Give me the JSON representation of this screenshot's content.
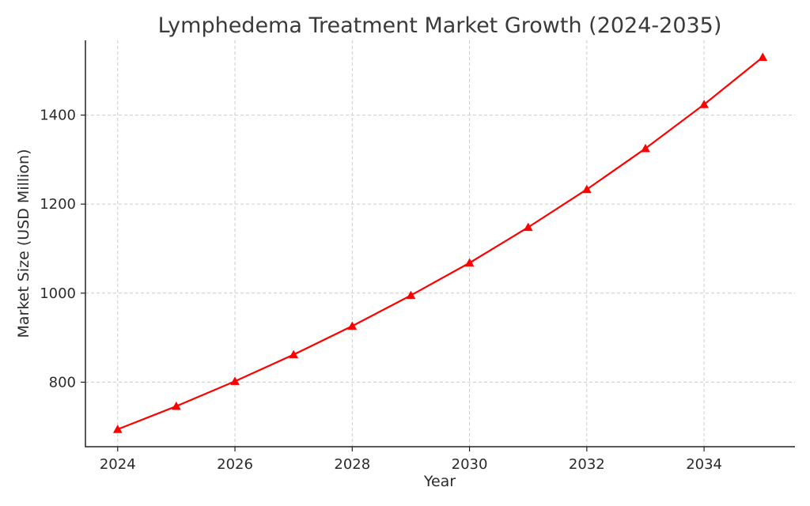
{
  "chart_data": {
    "type": "line",
    "title": "Lymphedema Treatment Market Growth (2024-2035)",
    "xlabel": "Year",
    "ylabel": "Market Size (USD Million)",
    "x": [
      2024,
      2025,
      2026,
      2027,
      2028,
      2029,
      2030,
      2031,
      2032,
      2033,
      2034,
      2035
    ],
    "series": [
      {
        "values": [
          694,
          746,
          802,
          862,
          926,
          995,
          1068,
          1148,
          1233,
          1325,
          1424,
          1530
        ],
        "color": "#ff0000",
        "marker": "triangle-up"
      }
    ],
    "xlim": [
      2023.45,
      2035.55
    ],
    "ylim": [
      655,
      1568
    ],
    "xticks": [
      2024,
      2026,
      2028,
      2030,
      2032,
      2034
    ],
    "yticks": [
      800,
      1000,
      1200,
      1400
    ],
    "grid": true,
    "legend": "none"
  }
}
